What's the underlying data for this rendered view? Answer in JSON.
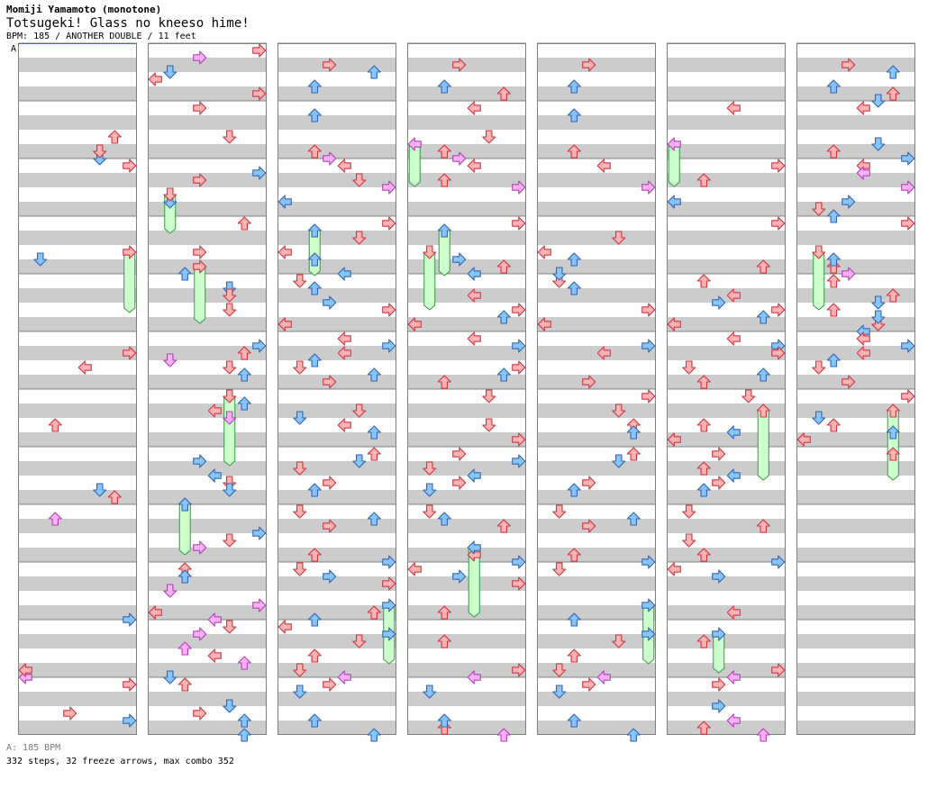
{
  "header": {
    "artist": "Momiji Yamamoto (monotone)",
    "title": "Totsugeki! Glass no kneeso hime!",
    "info": "BPM: 185 / ANOTHER DOUBLE / 11 feet"
  },
  "chart_data": {
    "type": "step-chart",
    "bpm": 185,
    "difficulty": "ANOTHER DOUBLE",
    "feet": 11,
    "bpm_marker": "A",
    "measures": 48,
    "steps": 332,
    "freeze_arrows": 32,
    "max_combo": 352
  },
  "footer": {
    "bpm_line": "A: 185 BPM",
    "stats_line": "332 steps, 32 freeze arrows, max combo 352"
  },
  "colors": {
    "stripe": "#cccccc",
    "border": "#808080",
    "red_fill": "#ffb4b4",
    "red_stroke": "#cc3344",
    "blue_fill": "#88c4ff",
    "blue_stroke": "#3366aa",
    "pink_fill": "#ffb0ff",
    "pink_stroke": "#b040b0",
    "freeze_fill": "#ccffcc",
    "freeze_stroke": "#339944"
  },
  "icons": {
    "arrow": "step-arrow-icon",
    "freeze": "freeze-arrow-icon"
  }
}
